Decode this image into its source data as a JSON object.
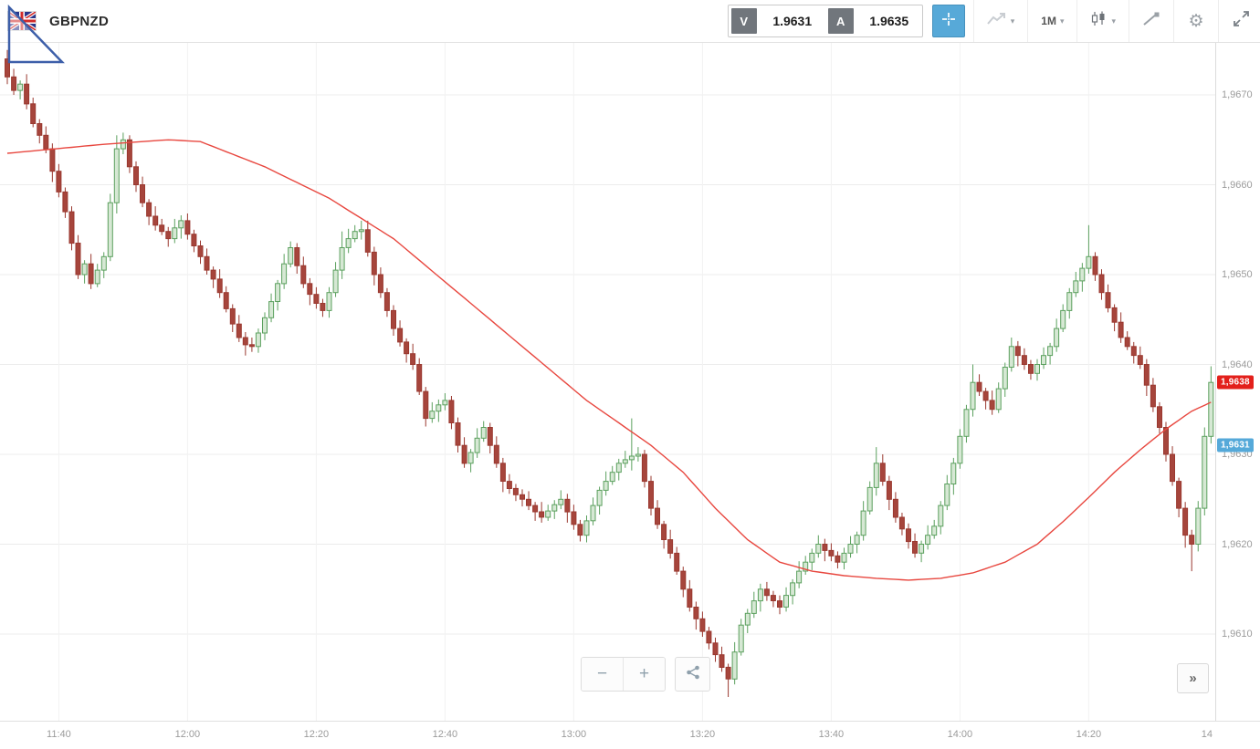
{
  "toolbar": {
    "symbol": "GBPNZD",
    "sell_button_label": "V",
    "sell_price": "1.9631",
    "ask_button_label": "A",
    "ask_price": "1.9635",
    "timeframe_label": "1M"
  },
  "controls": {
    "zoom_out_label": "−",
    "zoom_in_label": "+",
    "scroll_forward_label": "»"
  },
  "chart_data": {
    "type": "candlestick",
    "symbol": "GBPNZD",
    "interval": "1M",
    "start_time": "11:32",
    "interval_minutes": 1,
    "grid": true,
    "legend": "none",
    "colors": {
      "up_fill": "#d6e8d4",
      "up_stroke": "#5ba05e",
      "down_fill": "#a6453c",
      "down_stroke": "#9a382f",
      "ma_line": "#e8473f",
      "grid_h": "#ececec",
      "grid_v": "#f2f2f2",
      "last_price_tag": "#e3201b",
      "bid_price_tag": "#55a9d9"
    },
    "y_axis": {
      "side": "right",
      "min": 1.9603,
      "max": 1.96755,
      "ticks": [
        {
          "value": 1.967,
          "label": "1,9670"
        },
        {
          "value": 1.966,
          "label": "1,9660"
        },
        {
          "value": 1.965,
          "label": "1,9650"
        },
        {
          "value": 1.964,
          "label": "1,9640"
        },
        {
          "value": 1.963,
          "label": "1,9630"
        },
        {
          "value": 1.962,
          "label": "1,9620"
        },
        {
          "value": 1.961,
          "label": "1,9610"
        }
      ]
    },
    "x_axis": {
      "ticks": [
        {
          "index": 8,
          "label": "11:40"
        },
        {
          "index": 28,
          "label": "12:00"
        },
        {
          "index": 48,
          "label": "12:20"
        },
        {
          "index": 68,
          "label": "12:40"
        },
        {
          "index": 88,
          "label": "13:00"
        },
        {
          "index": 108,
          "label": "13:20"
        },
        {
          "index": 128,
          "label": "13:40"
        },
        {
          "index": 148,
          "label": "14:00"
        },
        {
          "index": 168,
          "label": "14:20"
        },
        {
          "index": 188,
          "label": "14"
        }
      ]
    },
    "price_labels": {
      "last": {
        "label": "1,9638",
        "value": 1.9638
      },
      "bid": {
        "label": "1,9631",
        "value": 1.9631
      }
    },
    "ma_waypoints": [
      [
        0,
        1.96635
      ],
      [
        15,
        1.96645
      ],
      [
        25,
        1.9665
      ],
      [
        30,
        1.96648
      ],
      [
        40,
        1.9662
      ],
      [
        50,
        1.96585
      ],
      [
        60,
        1.9654
      ],
      [
        70,
        1.9648
      ],
      [
        80,
        1.9642
      ],
      [
        90,
        1.9636
      ],
      [
        100,
        1.9631
      ],
      [
        105,
        1.9628
      ],
      [
        110,
        1.9624
      ],
      [
        115,
        1.96205
      ],
      [
        120,
        1.9618
      ],
      [
        125,
        1.9617
      ],
      [
        130,
        1.96165
      ],
      [
        135,
        1.96162
      ],
      [
        140,
        1.9616
      ],
      [
        145,
        1.96162
      ],
      [
        150,
        1.96168
      ],
      [
        155,
        1.9618
      ],
      [
        160,
        1.962
      ],
      [
        164,
        1.96225
      ],
      [
        168,
        1.96252
      ],
      [
        172,
        1.9628
      ],
      [
        176,
        1.96305
      ],
      [
        180,
        1.96328
      ],
      [
        184,
        1.96348
      ],
      [
        187,
        1.96358
      ]
    ],
    "candles": [
      [
        1.9674,
        1.9675,
        1.96712,
        1.9672
      ],
      [
        1.9672,
        1.96729,
        1.967,
        1.96705
      ],
      [
        1.96705,
        1.96716,
        1.96695,
        1.96712
      ],
      [
        1.96712,
        1.96723,
        1.96684,
        1.9669
      ],
      [
        1.9669,
        1.96697,
        1.96664,
        1.96668
      ],
      [
        1.96668,
        1.96673,
        1.96646,
        1.96655
      ],
      [
        1.96655,
        1.96665,
        1.96635,
        1.9664
      ],
      [
        1.9664,
        1.96646,
        1.96603,
        1.96615
      ],
      [
        1.96615,
        1.96623,
        1.96586,
        1.96592
      ],
      [
        1.96592,
        1.96597,
        1.96563,
        1.9657
      ],
      [
        1.9657,
        1.96576,
        1.96527,
        1.96535
      ],
      [
        1.96535,
        1.96544,
        1.96495,
        1.965
      ],
      [
        1.965,
        1.96516,
        1.9649,
        1.96512
      ],
      [
        1.96512,
        1.96523,
        1.96484,
        1.9649
      ],
      [
        1.9649,
        1.96512,
        1.96486,
        1.96505
      ],
      [
        1.96505,
        1.96525,
        1.96496,
        1.9652
      ],
      [
        1.9652,
        1.9659,
        1.96515,
        1.9658
      ],
      [
        1.9658,
        1.96655,
        1.96568,
        1.9664
      ],
      [
        1.9664,
        1.96658,
        1.96634,
        1.9665
      ],
      [
        1.9665,
        1.96655,
        1.96613,
        1.9662
      ],
      [
        1.9662,
        1.96626,
        1.96592,
        1.966
      ],
      [
        1.966,
        1.96609,
        1.96575,
        1.9658
      ],
      [
        1.9658,
        1.96584,
        1.96555,
        1.96565
      ],
      [
        1.96565,
        1.96576,
        1.96549,
        1.96555
      ],
      [
        1.96555,
        1.96562,
        1.96544,
        1.96548
      ],
      [
        1.96548,
        1.96553,
        1.96531,
        1.9654
      ],
      [
        1.9654,
        1.96562,
        1.96535,
        1.96552
      ],
      [
        1.96552,
        1.96566,
        1.9654,
        1.9656
      ],
      [
        1.9656,
        1.96568,
        1.96539,
        1.96545
      ],
      [
        1.96545,
        1.9655,
        1.96525,
        1.96532
      ],
      [
        1.96532,
        1.96538,
        1.96512,
        1.9652
      ],
      [
        1.9652,
        1.96529,
        1.965,
        1.96505
      ],
      [
        1.96505,
        1.96509,
        1.96485,
        1.96495
      ],
      [
        1.96495,
        1.96506,
        1.96474,
        1.9648
      ],
      [
        1.9648,
        1.96487,
        1.96458,
        1.96462
      ],
      [
        1.96462,
        1.96467,
        1.96436,
        1.96445
      ],
      [
        1.96445,
        1.96455,
        1.96425,
        1.9643
      ],
      [
        1.9643,
        1.96436,
        1.9641,
        1.96422
      ],
      [
        1.96422,
        1.9643,
        1.96414,
        1.9642
      ],
      [
        1.9642,
        1.9644,
        1.96413,
        1.96435
      ],
      [
        1.96435,
        1.96458,
        1.96427,
        1.96452
      ],
      [
        1.96452,
        1.96479,
        1.96447,
        1.9647
      ],
      [
        1.9647,
        1.96494,
        1.9646,
        1.9649
      ],
      [
        1.9649,
        1.96523,
        1.96484,
        1.96512
      ],
      [
        1.96512,
        1.96537,
        1.96508,
        1.9653
      ],
      [
        1.9653,
        1.96535,
        1.96501,
        1.9651
      ],
      [
        1.9651,
        1.9652,
        1.96485,
        1.9649
      ],
      [
        1.9649,
        1.96496,
        1.96466,
        1.96478
      ],
      [
        1.96478,
        1.96486,
        1.96462,
        1.96468
      ],
      [
        1.96468,
        1.96473,
        1.96453,
        1.9646
      ],
      [
        1.9646,
        1.96486,
        1.96452,
        1.9648
      ],
      [
        1.9648,
        1.96514,
        1.96475,
        1.96505
      ],
      [
        1.96505,
        1.96548,
        1.96495,
        1.9653
      ],
      [
        1.9653,
        1.96551,
        1.96524,
        1.9654
      ],
      [
        1.9654,
        1.96555,
        1.96536,
        1.96548
      ],
      [
        1.96548,
        1.9656,
        1.96539,
        1.9655
      ],
      [
        1.9655,
        1.9656,
        1.9652,
        1.96525
      ],
      [
        1.96525,
        1.96531,
        1.96488,
        1.965
      ],
      [
        1.965,
        1.96508,
        1.96474,
        1.9648
      ],
      [
        1.9648,
        1.96485,
        1.96453,
        1.9646
      ],
      [
        1.9646,
        1.96466,
        1.96432,
        1.9644
      ],
      [
        1.9644,
        1.96449,
        1.9642,
        1.96425
      ],
      [
        1.96425,
        1.96429,
        1.96402,
        1.96412
      ],
      [
        1.96412,
        1.96423,
        1.96394,
        1.964
      ],
      [
        1.964,
        1.96407,
        1.96366,
        1.9637
      ],
      [
        1.9637,
        1.96375,
        1.96331,
        1.9634
      ],
      [
        1.9634,
        1.96358,
        1.96335,
        1.96348
      ],
      [
        1.96348,
        1.96361,
        1.96336,
        1.96355
      ],
      [
        1.96355,
        1.96368,
        1.96349,
        1.9636
      ],
      [
        1.9636,
        1.96365,
        1.96328,
        1.96335
      ],
      [
        1.96335,
        1.96341,
        1.96302,
        1.9631
      ],
      [
        1.9631,
        1.96319,
        1.96285,
        1.9629
      ],
      [
        1.9629,
        1.96306,
        1.9628,
        1.96302
      ],
      [
        1.96302,
        1.96329,
        1.96296,
        1.96318
      ],
      [
        1.96318,
        1.96337,
        1.96314,
        1.9633
      ],
      [
        1.9633,
        1.96335,
        1.96301,
        1.9631
      ],
      [
        1.9631,
        1.9632,
        1.96285,
        1.9629
      ],
      [
        1.9629,
        1.96296,
        1.96258,
        1.9627
      ],
      [
        1.9627,
        1.96278,
        1.96256,
        1.96262
      ],
      [
        1.96262,
        1.96267,
        1.96248,
        1.96255
      ],
      [
        1.96255,
        1.96261,
        1.96242,
        1.9625
      ],
      [
        1.9625,
        1.96259,
        1.96238,
        1.96243
      ],
      [
        1.96243,
        1.96247,
        1.96226,
        1.96236
      ],
      [
        1.96236,
        1.96247,
        1.96224,
        1.9623
      ],
      [
        1.9623,
        1.96244,
        1.96226,
        1.96237
      ],
      [
        1.96237,
        1.96249,
        1.96228,
        1.96244
      ],
      [
        1.96244,
        1.9626,
        1.96239,
        1.9625
      ],
      [
        1.9625,
        1.96256,
        1.96224,
        1.96236
      ],
      [
        1.96236,
        1.96244,
        1.96216,
        1.96222
      ],
      [
        1.96222,
        1.96227,
        1.96203,
        1.9621
      ],
      [
        1.9621,
        1.96232,
        1.96202,
        1.96226
      ],
      [
        1.96226,
        1.96252,
        1.96221,
        1.96243
      ],
      [
        1.96243,
        1.96264,
        1.96233,
        1.9626
      ],
      [
        1.9626,
        1.96281,
        1.96254,
        1.9627
      ],
      [
        1.9627,
        1.96287,
        1.96266,
        1.9628
      ],
      [
        1.9628,
        1.96295,
        1.96271,
        1.9629
      ],
      [
        1.9629,
        1.96304,
        1.96285,
        1.96294
      ],
      [
        1.96294,
        1.9634,
        1.96282,
        1.96298
      ],
      [
        1.96298,
        1.96308,
        1.96292,
        1.963
      ],
      [
        1.963,
        1.96305,
        1.96263,
        1.9627
      ],
      [
        1.9627,
        1.96276,
        1.96232,
        1.9624
      ],
      [
        1.9624,
        1.96249,
        1.96217,
        1.96222
      ],
      [
        1.96222,
        1.96226,
        1.96195,
        1.96205
      ],
      [
        1.96205,
        1.96216,
        1.96184,
        1.9619
      ],
      [
        1.9619,
        1.96197,
        1.96166,
        1.9617
      ],
      [
        1.9617,
        1.96175,
        1.96141,
        1.9615
      ],
      [
        1.9615,
        1.9616,
        1.96125,
        1.9613
      ],
      [
        1.9613,
        1.96136,
        1.96105,
        1.96117
      ],
      [
        1.96117,
        1.96125,
        1.96097,
        1.96103
      ],
      [
        1.96103,
        1.96108,
        1.96083,
        1.9609
      ],
      [
        1.9609,
        1.96096,
        1.96069,
        1.96077
      ],
      [
        1.96077,
        1.96086,
        1.96058,
        1.96063
      ],
      [
        1.96063,
        1.96067,
        1.9603,
        1.9605
      ],
      [
        1.9605,
        1.96091,
        1.96044,
        1.9608
      ],
      [
        1.9608,
        1.96117,
        1.96076,
        1.9611
      ],
      [
        1.9611,
        1.96128,
        1.96101,
        1.96123
      ],
      [
        1.96123,
        1.96147,
        1.96118,
        1.96137
      ],
      [
        1.96137,
        1.96156,
        1.96125,
        1.9615
      ],
      [
        1.9615,
        1.96158,
        1.96137,
        1.96143
      ],
      [
        1.96143,
        1.96148,
        1.9613,
        1.96137
      ],
      [
        1.96137,
        1.96143,
        1.96122,
        1.9613
      ],
      [
        1.9613,
        1.96152,
        1.96125,
        1.96143
      ],
      [
        1.96143,
        1.96161,
        1.96133,
        1.96157
      ],
      [
        1.96157,
        1.96181,
        1.96151,
        1.9617
      ],
      [
        1.9617,
        1.96187,
        1.96166,
        1.9618
      ],
      [
        1.9618,
        1.96195,
        1.96171,
        1.9619
      ],
      [
        1.9619,
        1.9621,
        1.96185,
        1.962
      ],
      [
        1.962,
        1.96206,
        1.96181,
        1.96193
      ],
      [
        1.96193,
        1.96201,
        1.96181,
        1.96187
      ],
      [
        1.96187,
        1.96192,
        1.96173,
        1.9618
      ],
      [
        1.9618,
        1.96196,
        1.96172,
        1.9619
      ],
      [
        1.9619,
        1.96209,
        1.96185,
        1.962
      ],
      [
        1.962,
        1.96214,
        1.9619,
        1.9621
      ],
      [
        1.9621,
        1.96248,
        1.96204,
        1.96237
      ],
      [
        1.96237,
        1.9627,
        1.96233,
        1.96263
      ],
      [
        1.96263,
        1.96308,
        1.96254,
        1.9629
      ],
      [
        1.9629,
        1.963,
        1.96265,
        1.9627
      ],
      [
        1.9627,
        1.96276,
        1.96238,
        1.9625
      ],
      [
        1.9625,
        1.96258,
        1.96224,
        1.9623
      ],
      [
        1.9623,
        1.96235,
        1.9621,
        1.96217
      ],
      [
        1.96217,
        1.96223,
        1.96195,
        1.96203
      ],
      [
        1.96203,
        1.96212,
        1.96185,
        1.9619
      ],
      [
        1.9619,
        1.96204,
        1.9618,
        1.962
      ],
      [
        1.962,
        1.96221,
        1.96194,
        1.9621
      ],
      [
        1.9621,
        1.96227,
        1.96206,
        1.9622
      ],
      [
        1.9622,
        1.96248,
        1.96211,
        1.96243
      ],
      [
        1.96243,
        1.96277,
        1.96238,
        1.96267
      ],
      [
        1.96267,
        1.96296,
        1.96255,
        1.9629
      ],
      [
        1.9629,
        1.96328,
        1.96284,
        1.9632
      ],
      [
        1.9632,
        1.96355,
        1.96313,
        1.9635
      ],
      [
        1.9635,
        1.964,
        1.96342,
        1.9638
      ],
      [
        1.9638,
        1.96389,
        1.96365,
        1.9637
      ],
      [
        1.9637,
        1.96374,
        1.9635,
        1.9636
      ],
      [
        1.9636,
        1.96371,
        1.96344,
        1.9635
      ],
      [
        1.9635,
        1.9638,
        1.96346,
        1.96373
      ],
      [
        1.96373,
        1.96402,
        1.96364,
        1.96397
      ],
      [
        1.96397,
        1.9643,
        1.96392,
        1.9642
      ],
      [
        1.9642,
        1.96426,
        1.96398,
        1.9641
      ],
      [
        1.9641,
        1.96418,
        1.96394,
        1.964
      ],
      [
        1.964,
        1.96405,
        1.96383,
        1.9639
      ],
      [
        1.9639,
        1.96406,
        1.96382,
        1.964
      ],
      [
        1.964,
        1.96419,
        1.96395,
        1.9641
      ],
      [
        1.9641,
        1.96424,
        1.964,
        1.9642
      ],
      [
        1.9642,
        1.96451,
        1.96414,
        1.9644
      ],
      [
        1.9644,
        1.96467,
        1.96436,
        1.9646
      ],
      [
        1.9646,
        1.96485,
        1.96451,
        1.9648
      ],
      [
        1.9648,
        1.96503,
        1.96475,
        1.96493
      ],
      [
        1.96493,
        1.96513,
        1.96481,
        1.96507
      ],
      [
        1.96507,
        1.96555,
        1.96501,
        1.9652
      ],
      [
        1.9652,
        1.96525,
        1.96493,
        1.965
      ],
      [
        1.965,
        1.96506,
        1.96472,
        1.9648
      ],
      [
        1.9648,
        1.96489,
        1.96458,
        1.96463
      ],
      [
        1.96463,
        1.96467,
        1.96437,
        1.96447
      ],
      [
        1.96447,
        1.96458,
        1.96424,
        1.9643
      ],
      [
        1.9643,
        1.96437,
        1.96416,
        1.9642
      ],
      [
        1.9642,
        1.96425,
        1.96401,
        1.9641
      ],
      [
        1.9641,
        1.9642,
        1.96395,
        1.964
      ],
      [
        1.964,
        1.96406,
        1.96365,
        1.96377
      ],
      [
        1.96377,
        1.96385,
        1.96347,
        1.96353
      ],
      [
        1.96353,
        1.96358,
        1.96323,
        1.9633
      ],
      [
        1.9633,
        1.96336,
        1.96292,
        1.963
      ],
      [
        1.963,
        1.96309,
        1.96265,
        1.9627
      ],
      [
        1.9627,
        1.96274,
        1.9623,
        1.9624
      ],
      [
        1.9624,
        1.96247,
        1.96196,
        1.9621
      ],
      [
        1.9621,
        1.96216,
        1.9617,
        1.962
      ],
      [
        1.962,
        1.96248,
        1.96192,
        1.9624
      ],
      [
        1.9624,
        1.9633,
        1.96232,
        1.9632
      ],
      [
        1.9632,
        1.96398,
        1.96312,
        1.9638
      ]
    ]
  }
}
